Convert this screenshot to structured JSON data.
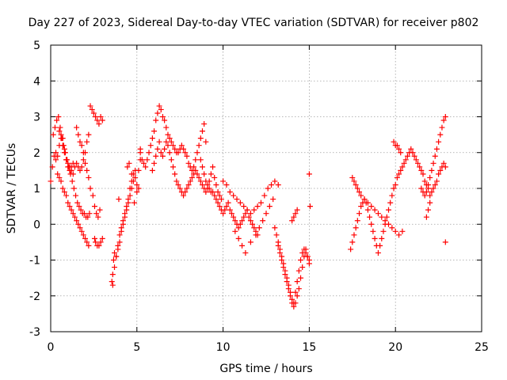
{
  "chart_data": {
    "type": "scatter",
    "title": "Day 227 of 2023, Sidereal Day-to-day VTEC variation (SDTVAR) for receiver p802",
    "xlabel": "GPS time / hours",
    "ylabel": "SDTVAR / TECUs",
    "xlim": [
      0,
      25
    ],
    "ylim": [
      -3,
      5
    ],
    "xticks": [
      "0",
      "5",
      "10",
      "15",
      "20",
      "25"
    ],
    "yticks": [
      "-3",
      "-2",
      "-1",
      "0",
      "1",
      "2",
      "3",
      "4",
      "5"
    ],
    "grid": true,
    "marker": "+",
    "color": "#ff0000",
    "series": [
      {
        "name": "SDTVAR",
        "x": [
          0.0,
          0.1,
          0.2,
          0.3,
          0.4,
          0.5,
          0.6,
          0.7,
          0.8,
          0.9,
          1.0,
          1.1,
          1.2,
          1.3,
          1.4,
          1.5,
          1.6,
          1.7,
          1.8,
          1.9,
          2.0,
          2.1,
          2.2,
          2.3,
          2.4,
          2.5,
          2.6,
          2.7,
          2.8,
          2.9,
          3.0,
          0.15,
          0.25,
          0.35,
          0.45,
          0.55,
          0.65,
          0.75,
          0.85,
          0.95,
          1.05,
          1.15,
          1.25,
          1.35,
          1.45,
          1.55,
          1.65,
          1.75,
          1.85,
          1.95,
          2.05,
          2.15,
          2.25,
          0.3,
          0.4,
          0.5,
          0.6,
          0.7,
          0.8,
          0.9,
          1.0,
          1.1,
          1.2,
          1.3,
          1.4,
          1.5,
          1.6,
          1.7,
          1.8,
          1.9,
          2.0,
          2.1,
          2.2,
          0.5,
          0.6,
          0.7,
          0.8,
          0.9,
          1.0,
          1.1,
          1.2,
          1.3,
          1.5,
          1.6,
          1.7,
          1.8,
          1.9,
          2.0,
          2.1,
          2.2,
          2.3,
          2.45,
          2.55,
          2.65,
          2.75,
          2.85,
          2.55,
          2.6,
          2.7,
          2.8,
          2.9,
          3.0,
          3.55,
          3.6,
          3.65,
          3.7,
          3.8,
          3.9,
          4.0,
          4.1,
          4.2,
          4.3,
          4.4,
          4.5,
          4.6,
          4.7,
          4.8,
          4.9,
          5.0,
          5.1,
          5.2,
          3.6,
          3.7,
          3.8,
          3.9,
          4.0,
          4.1,
          4.2,
          4.3,
          4.4,
          4.5,
          4.6,
          4.7,
          4.8,
          4.9,
          5.0,
          5.1,
          5.2,
          3.95,
          4.45,
          4.55,
          4.7,
          4.85,
          5.2,
          5.3,
          5.4,
          5.5,
          5.6,
          5.7,
          5.8,
          5.9,
          6.0,
          6.1,
          6.2,
          6.3,
          6.4,
          6.5,
          6.6,
          6.7,
          6.8,
          6.9,
          7.0,
          7.1,
          7.2,
          7.3,
          7.4,
          7.5,
          7.6,
          7.7,
          7.8,
          7.9,
          8.0,
          8.1,
          8.2,
          8.3,
          8.4,
          8.5,
          8.6,
          8.7,
          8.8,
          8.9,
          9.0,
          5.9,
          6.0,
          6.1,
          6.2,
          6.3,
          6.4,
          6.5,
          6.6,
          6.7,
          6.8,
          6.9,
          7.0,
          7.1,
          7.2,
          7.3,
          7.4,
          7.5,
          7.6,
          7.7,
          7.8,
          7.9,
          8.0,
          8.1,
          8.2,
          8.3,
          8.4,
          8.5,
          8.6,
          8.7,
          8.8,
          8.9,
          9.0,
          9.1,
          9.2,
          9.3,
          9.4,
          9.5,
          9.6,
          9.7,
          9.8,
          9.9,
          8.7,
          8.8,
          8.9,
          9.0,
          9.1,
          9.2,
          9.3,
          9.4,
          9.5,
          9.6,
          9.7,
          9.8,
          9.9,
          10.0,
          10.1,
          10.2,
          10.3,
          10.4,
          10.5,
          10.6,
          10.7,
          10.8,
          10.9,
          11.0,
          11.1,
          11.2,
          11.3,
          11.4,
          11.5,
          11.6,
          11.7,
          11.8,
          11.9,
          12.0,
          10.0,
          10.2,
          10.4,
          10.6,
          10.8,
          11.0,
          11.2,
          11.4,
          11.6,
          11.8,
          12.0,
          12.2,
          12.4,
          12.6,
          12.8,
          13.0,
          13.2,
          10.7,
          10.9,
          11.1,
          11.3,
          11.6,
          11.9,
          12.1,
          12.3,
          12.5,
          12.7,
          12.9,
          13.0,
          13.1,
          13.2,
          13.3,
          13.4,
          13.5,
          13.6,
          13.7,
          13.8,
          13.9,
          14.0,
          14.1,
          14.2,
          14.3,
          14.4,
          14.5,
          14.6,
          14.7,
          14.8,
          14.9,
          15.0,
          13.2,
          13.3,
          13.4,
          13.5,
          13.6,
          13.7,
          13.8,
          13.9,
          14.0,
          14.1,
          14.2,
          14.3,
          14.4,
          14.5,
          14.6,
          14.7,
          14.8,
          14.9,
          15.0,
          14.0,
          14.1,
          14.2,
          14.3,
          15.0,
          15.05,
          17.4,
          17.5,
          17.6,
          17.7,
          17.8,
          17.9,
          18.0,
          18.1,
          18.2,
          18.3,
          18.4,
          18.5,
          18.6,
          18.7,
          18.8,
          18.9,
          19.0,
          19.1,
          19.2,
          19.3,
          19.4,
          19.5,
          19.6,
          19.7,
          19.8,
          19.9,
          20.0,
          20.1,
          20.2,
          20.3,
          20.4,
          20.5,
          20.6,
          20.7,
          20.8,
          20.9,
          21.0,
          21.1,
          21.2,
          21.3,
          21.4,
          21.5,
          17.5,
          17.6,
          17.7,
          17.8,
          17.9,
          18.0,
          18.2,
          18.4,
          18.6,
          18.8,
          19.0,
          19.2,
          19.4,
          19.6,
          19.8,
          20.0,
          20.2,
          20.4,
          19.9,
          20.0,
          20.1,
          20.2,
          20.3,
          21.5,
          21.6,
          21.7,
          21.8,
          21.9,
          22.0,
          22.1,
          22.2,
          22.3,
          22.4,
          22.5,
          22.6,
          22.7,
          22.8,
          22.9,
          21.6,
          21.7,
          21.8,
          21.9,
          22.0,
          22.1,
          22.2,
          22.3,
          22.4,
          22.5,
          22.6,
          22.7,
          22.8,
          22.9,
          21.8,
          21.9,
          22.0,
          22.9
        ],
        "y": [
          1.2,
          1.6,
          1.9,
          2.0,
          1.9,
          2.2,
          2.5,
          2.4,
          2.1,
          1.8,
          1.7,
          1.6,
          1.6,
          1.7,
          1.6,
          1.7,
          1.6,
          1.5,
          1.6,
          1.8,
          2.0,
          2.3,
          2.5,
          3.3,
          3.2,
          3.1,
          3.0,
          2.9,
          2.8,
          3.0,
          2.9,
          2.5,
          2.7,
          2.9,
          3.0,
          2.7,
          2.4,
          2.2,
          2.0,
          1.8,
          1.6,
          1.4,
          1.2,
          1.0,
          0.8,
          0.6,
          0.5,
          0.4,
          0.3,
          0.3,
          0.2,
          0.2,
          0.3,
          1.8,
          1.4,
          1.3,
          1.2,
          1.0,
          0.9,
          0.8,
          0.6,
          0.5,
          0.4,
          0.3,
          0.2,
          0.1,
          0.0,
          -0.1,
          -0.2,
          -0.3,
          -0.4,
          -0.5,
          -0.6,
          2.6,
          2.4,
          2.2,
          2.0,
          1.8,
          1.6,
          1.5,
          1.5,
          1.4,
          2.7,
          2.5,
          2.3,
          2.2,
          2.0,
          1.7,
          1.5,
          1.3,
          1.0,
          0.8,
          0.5,
          0.3,
          0.2,
          0.4,
          -0.4,
          -0.5,
          -0.6,
          -0.6,
          -0.5,
          -0.4,
          -1.6,
          -1.4,
          -1.0,
          -0.8,
          -0.9,
          -0.7,
          -0.5,
          -0.2,
          0.0,
          0.2,
          0.4,
          0.6,
          0.8,
          1.0,
          1.2,
          1.3,
          1.1,
          1.5,
          2.0,
          -1.7,
          -1.2,
          -0.9,
          -0.6,
          -0.3,
          -0.1,
          0.1,
          0.3,
          0.5,
          0.7,
          1.0,
          1.2,
          1.4,
          1.5,
          0.9,
          1.0,
          1.8,
          0.7,
          1.6,
          1.7,
          1.4,
          0.6,
          2.1,
          1.8,
          1.7,
          1.6,
          1.8,
          2.0,
          2.2,
          2.4,
          2.6,
          2.9,
          3.1,
          3.3,
          3.2,
          3.0,
          2.9,
          2.7,
          2.5,
          2.4,
          2.3,
          2.2,
          2.1,
          2.0,
          2.0,
          2.1,
          2.2,
          2.1,
          2.0,
          1.9,
          1.7,
          1.6,
          1.5,
          1.6,
          1.8,
          2.0,
          2.2,
          2.4,
          2.6,
          2.8,
          2.3,
          1.5,
          1.7,
          1.9,
          2.1,
          2.3,
          2.0,
          1.9,
          2.1,
          2.3,
          2.2,
          2.0,
          1.8,
          1.6,
          1.4,
          1.2,
          1.1,
          1.0,
          0.9,
          0.8,
          0.9,
          1.0,
          1.1,
          1.2,
          1.3,
          1.4,
          1.5,
          1.4,
          1.3,
          1.2,
          1.1,
          1.0,
          0.9,
          1.0,
          1.2,
          1.4,
          1.6,
          1.3,
          1.1,
          0.9,
          0.8,
          0.7,
          1.8,
          1.6,
          1.4,
          1.2,
          1.1,
          1.0,
          0.9,
          0.9,
          0.8,
          0.7,
          0.6,
          0.5,
          0.4,
          0.3,
          0.4,
          0.5,
          0.6,
          0.4,
          0.3,
          0.2,
          0.1,
          0.0,
          -0.1,
          0.0,
          0.1,
          0.2,
          0.3,
          0.4,
          0.2,
          0.1,
          0.0,
          -0.1,
          -0.2,
          -0.3,
          1.2,
          1.1,
          0.9,
          0.8,
          0.7,
          0.6,
          0.5,
          0.4,
          0.3,
          0.4,
          0.5,
          0.6,
          0.8,
          1.0,
          1.1,
          1.2,
          1.1,
          -0.2,
          -0.4,
          -0.6,
          -0.8,
          -0.5,
          -0.3,
          -0.1,
          0.1,
          0.3,
          0.5,
          0.7,
          -0.1,
          -0.3,
          -0.5,
          -0.7,
          -0.9,
          -1.1,
          -1.3,
          -1.5,
          -1.7,
          -1.9,
          -2.1,
          -2.2,
          -1.9,
          -1.6,
          -1.3,
          -1.0,
          -0.8,
          -0.7,
          -0.8,
          -0.9,
          -1.0,
          -0.6,
          -0.8,
          -1.0,
          -1.2,
          -1.4,
          -1.6,
          -1.8,
          -2.0,
          -2.2,
          -2.3,
          -2.2,
          -2.0,
          -1.8,
          -1.5,
          -1.2,
          -0.9,
          -0.7,
          -0.9,
          -1.1,
          0.1,
          0.2,
          0.3,
          0.4,
          1.4,
          0.5,
          -0.7,
          -0.5,
          -0.3,
          -0.1,
          0.1,
          0.3,
          0.5,
          0.6,
          0.7,
          0.6,
          0.4,
          0.2,
          0.0,
          -0.2,
          -0.4,
          -0.6,
          -0.8,
          -0.6,
          -0.4,
          -0.2,
          0.0,
          0.2,
          0.4,
          0.6,
          0.8,
          1.0,
          1.1,
          1.3,
          1.4,
          1.5,
          1.6,
          1.7,
          1.8,
          1.9,
          2.0,
          2.1,
          2.0,
          1.9,
          1.8,
          1.7,
          1.6,
          1.5,
          1.3,
          1.2,
          1.1,
          1.0,
          0.9,
          0.8,
          0.7,
          0.6,
          0.5,
          0.4,
          0.3,
          0.2,
          0.1,
          0.0,
          -0.1,
          -0.2,
          -0.3,
          -0.2,
          2.3,
          2.2,
          2.2,
          2.1,
          2.0,
          1.0,
          0.9,
          0.8,
          0.9,
          1.1,
          1.3,
          1.5,
          1.7,
          1.9,
          2.1,
          2.3,
          2.5,
          2.7,
          2.9,
          3.0,
          1.4,
          1.2,
          1.1,
          1.0,
          0.8,
          0.9,
          1.0,
          1.1,
          1.2,
          1.4,
          1.5,
          1.6,
          1.7,
          1.6,
          0.2,
          0.4,
          0.6,
          -0.5
        ]
      }
    ]
  }
}
